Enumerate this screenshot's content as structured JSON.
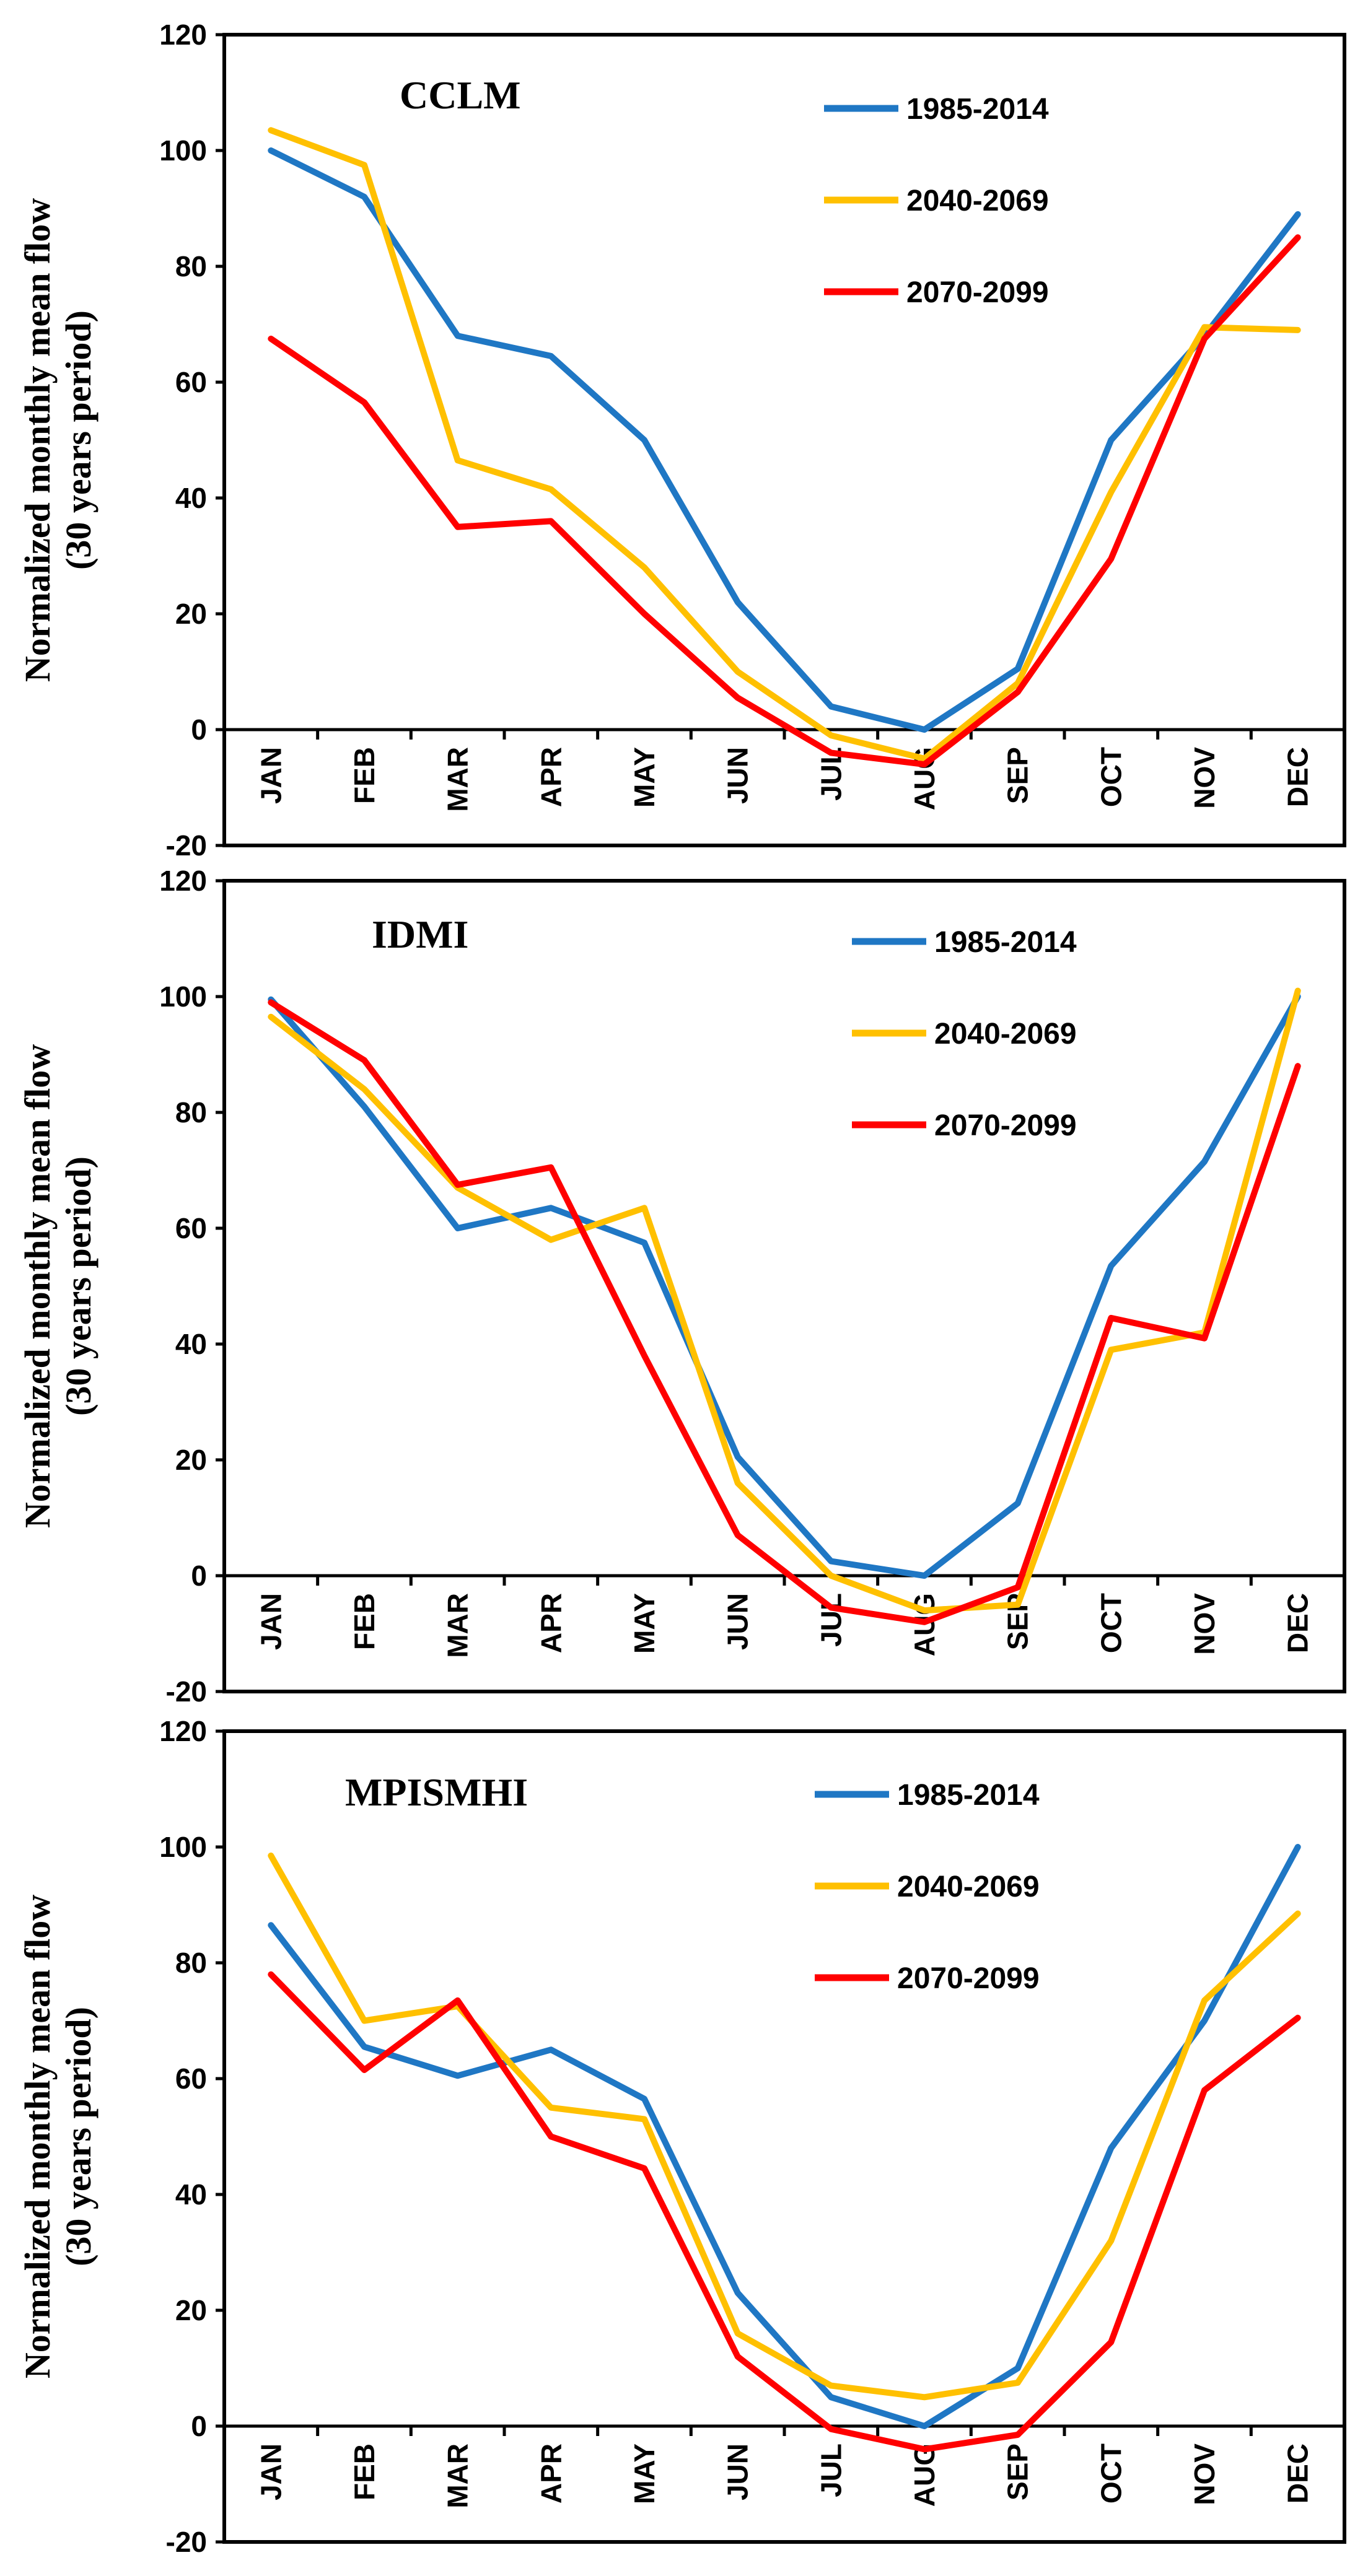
{
  "colors": {
    "s1985": "#1f77c4",
    "s2040": "#ffc000",
    "s2070": "#ff0000",
    "axis": "#000000"
  },
  "chart_data": [
    {
      "type": "line",
      "title": "CCLM",
      "ylabel": [
        "Normalized monthly mean flow",
        "(30 years period)"
      ],
      "xlabel": "",
      "categories": [
        "JAN",
        "FEB",
        "MAR",
        "APR",
        "MAY",
        "JUN",
        "JUL",
        "AUG",
        "SEP",
        "OCT",
        "NOV",
        "DEC"
      ],
      "ylim": [
        -20,
        120
      ],
      "yticks": [
        -20,
        0,
        20,
        40,
        60,
        80,
        100,
        120
      ],
      "legend_position": "top-right",
      "series": [
        {
          "name": "1985-2014",
          "color": "#1f77c4",
          "values": [
            100,
            92,
            68,
            64.5,
            50,
            22,
            4,
            0,
            10.5,
            50,
            68,
            89
          ]
        },
        {
          "name": "2040-2069",
          "color": "#ffc000",
          "values": [
            103.5,
            97.5,
            46.5,
            41.5,
            28,
            10,
            -1,
            -5,
            8,
            41,
            69.5,
            69
          ]
        },
        {
          "name": "2070-2099",
          "color": "#ff0000",
          "values": [
            67.5,
            56.5,
            35,
            36,
            20,
            5.5,
            -4,
            -6,
            6.5,
            29.5,
            67.5,
            85
          ]
        }
      ]
    },
    {
      "type": "line",
      "title": "IDMI",
      "ylabel": [
        "Normalized monthly mean flow",
        "(30 years period)"
      ],
      "xlabel": "",
      "categories": [
        "JAN",
        "FEB",
        "MAR",
        "APR",
        "MAY",
        "JUN",
        "JUL",
        "AUG",
        "SEP",
        "OCT",
        "NOV",
        "DEC"
      ],
      "ylim": [
        -20,
        120
      ],
      "yticks": [
        -20,
        0,
        20,
        40,
        60,
        80,
        100,
        120
      ],
      "legend_position": "top-right",
      "series": [
        {
          "name": "1985-2014",
          "color": "#1f77c4",
          "values": [
            99.5,
            81,
            60,
            63.5,
            57.5,
            20.5,
            2.5,
            0,
            12.5,
            53.5,
            71.5,
            100
          ]
        },
        {
          "name": "2040-2069",
          "color": "#ffc000",
          "values": [
            96.5,
            84,
            67,
            58,
            63.5,
            16,
            0,
            -6,
            -5,
            39,
            42,
            101
          ]
        },
        {
          "name": "2070-2099",
          "color": "#ff0000",
          "values": [
            99,
            89,
            67.5,
            70.5,
            38,
            7,
            -5.5,
            -8,
            -2,
            44.5,
            41,
            88
          ]
        }
      ]
    },
    {
      "type": "line",
      "title": "MPISMHI",
      "ylabel": [
        "Normalized monthly mean flow",
        "(30 years period)"
      ],
      "xlabel": "",
      "categories": [
        "JAN",
        "FEB",
        "MAR",
        "APR",
        "MAY",
        "JUN",
        "JUL",
        "AUG",
        "SEP",
        "OCT",
        "NOV",
        "DEC"
      ],
      "ylim": [
        -20,
        120
      ],
      "yticks": [
        -20,
        0,
        20,
        40,
        60,
        80,
        100,
        120
      ],
      "legend_position": "top-right",
      "series": [
        {
          "name": "1985-2014",
          "color": "#1f77c4",
          "values": [
            86.5,
            65.5,
            60.5,
            65,
            56.5,
            23,
            5,
            0,
            10,
            48,
            70,
            100
          ]
        },
        {
          "name": "2040-2069",
          "color": "#ffc000",
          "values": [
            98.5,
            70,
            72.5,
            55,
            53,
            16,
            7,
            5,
            7.5,
            32,
            73.5,
            88.5
          ]
        },
        {
          "name": "2070-2099",
          "color": "#ff0000",
          "values": [
            78,
            61.5,
            73.5,
            50,
            44.5,
            12,
            -0.5,
            -4,
            -1.5,
            14.5,
            58,
            70.5
          ]
        }
      ]
    }
  ]
}
